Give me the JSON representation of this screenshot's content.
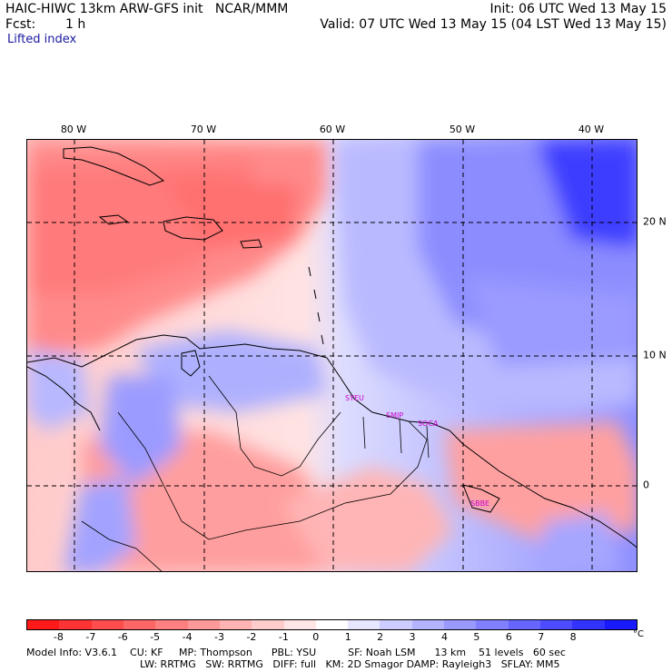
{
  "header": {
    "model_line": "HAIC-HIWC 13km ARW-GFS init   NCAR/MMM",
    "init_line": "Init: 06 UTC Wed 13 May 15",
    "fcst_label": "Fcst:",
    "fcst_value": "1 h",
    "valid_line": "Valid: 07 UTC Wed 13 May 15 (04 LST Wed 13 May 15)",
    "field_name": "Lifted index"
  },
  "map": {
    "lon_labels": [
      "80 W",
      "70 W",
      "60 W",
      "50 W",
      "40 W"
    ],
    "lat_labels": [
      "20 N",
      "10 N",
      "0"
    ],
    "stations": [
      "SYEU",
      "SMJP",
      "SOCA",
      "SBBE"
    ]
  },
  "colorbar": {
    "ticks": [
      "-8",
      "-7",
      "-6",
      "-5",
      "-4",
      "-3",
      "-2",
      "-1",
      "0",
      "1",
      "2",
      "3",
      "4",
      "5",
      "6",
      "7",
      "8"
    ],
    "unit": "°C",
    "colors": [
      "#ff1a1a",
      "#ff3333",
      "#ff4d4d",
      "#ff6666",
      "#ff8080",
      "#ff9999",
      "#ffb3b3",
      "#ffcccc",
      "#ffe6e6",
      "#ffffff",
      "#e6e6ff",
      "#ccccff",
      "#b3b3ff",
      "#9999ff",
      "#8080ff",
      "#6666ff",
      "#4d4dff",
      "#3333ff",
      "#1a1aff"
    ]
  },
  "footer": {
    "line1": "Model Info: V3.6.1    CU: KF     MP: Thompson      PBL: YSU          SF: Noah LSM      13 km    51 levels   60 sec",
    "line2": "LW: RRTMG   SW: RRTMG   DIFF: full   KM: 2D Smagor DAMP: Rayleigh3   SFLAY: MM5"
  }
}
